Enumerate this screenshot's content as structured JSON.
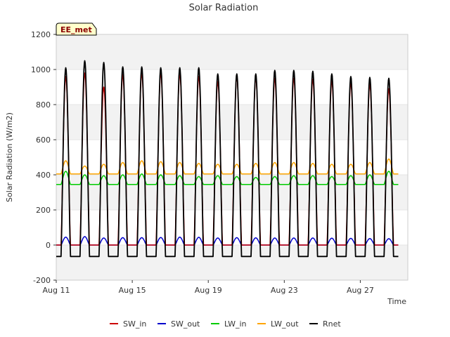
{
  "chart_data": {
    "type": "line",
    "title": "Solar Radiation",
    "xlabel": "Time",
    "ylabel": "Solar Radiation (W/m2)",
    "badge": "EE_met",
    "ylim": [
      -200,
      1200
    ],
    "yticks": [
      -200,
      0,
      200,
      400,
      600,
      800,
      1000,
      1200
    ],
    "xlim": [
      11,
      29.5
    ],
    "xticks": [
      {
        "value": 11,
        "label": "Aug 11"
      },
      {
        "value": 15,
        "label": "Aug 15"
      },
      {
        "value": 19,
        "label": "Aug 19"
      },
      {
        "value": 23,
        "label": "Aug 23"
      },
      {
        "value": 27,
        "label": "Aug 27"
      }
    ],
    "band_ranges": [
      [
        -200,
        0
      ],
      [
        200,
        400
      ],
      [
        600,
        800
      ],
      [
        1000,
        1200
      ]
    ],
    "grid": true,
    "legend_position": "bottom",
    "days": [
      11,
      12,
      13,
      14,
      15,
      16,
      17,
      18,
      19,
      20,
      21,
      22,
      23,
      24,
      25,
      26,
      27,
      28
    ],
    "series": [
      {
        "name": "SW_in",
        "color": "#cc0000",
        "values": [
          960,
          980,
          900,
          970,
          980,
          980,
          975,
          960,
          930,
          960,
          955,
          950,
          950,
          945,
          935,
          925,
          915,
          890
        ]
      },
      {
        "name": "SW_out",
        "color": "#0000cc",
        "values": [
          45,
          48,
          40,
          42,
          42,
          43,
          45,
          44,
          40,
          42,
          41,
          40,
          40,
          40,
          39,
          38,
          37,
          36
        ]
      },
      {
        "name": "LW_in",
        "color": "#00cc00",
        "values": [
          420,
          400,
          395,
          400,
          405,
          400,
          395,
          390,
          395,
          390,
          385,
          390,
          395,
          395,
          390,
          395,
          400,
          420
        ]
      },
      {
        "name": "LW_out",
        "color": "#ffa500",
        "values": [
          480,
          450,
          460,
          470,
          480,
          475,
          470,
          465,
          460,
          460,
          465,
          470,
          470,
          465,
          460,
          460,
          470,
          490
        ]
      },
      {
        "name": "Rnet",
        "color": "#000000",
        "values": [
          1010,
          1050,
          1040,
          1015,
          1015,
          1010,
          1010,
          1010,
          975,
          975,
          975,
          995,
          995,
          990,
          975,
          960,
          955,
          950
        ]
      }
    ],
    "night_values": {
      "SW_in": 0,
      "SW_out": 0,
      "LW_in": 345,
      "LW_out": 405,
      "Rnet": -65
    }
  }
}
